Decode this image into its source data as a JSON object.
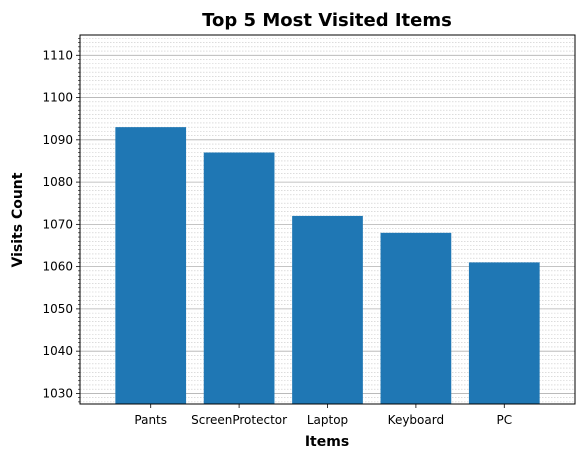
{
  "chart_data": {
    "type": "bar",
    "title": "Top 5 Most Visited Items",
    "xlabel": "Items",
    "ylabel": "Visits Count",
    "categories": [
      "Pants",
      "ScreenProtector",
      "Laptop",
      "Keyboard",
      "PC"
    ],
    "values": [
      1093,
      1087,
      1072,
      1068,
      1061
    ],
    "ylim": [
      1027.5,
      1114.8
    ],
    "yticks": [
      1030,
      1040,
      1050,
      1060,
      1070,
      1080,
      1090,
      1100,
      1110
    ],
    "minor_tick_step": 1,
    "grid": true,
    "bar_color": "#1f77b4"
  }
}
